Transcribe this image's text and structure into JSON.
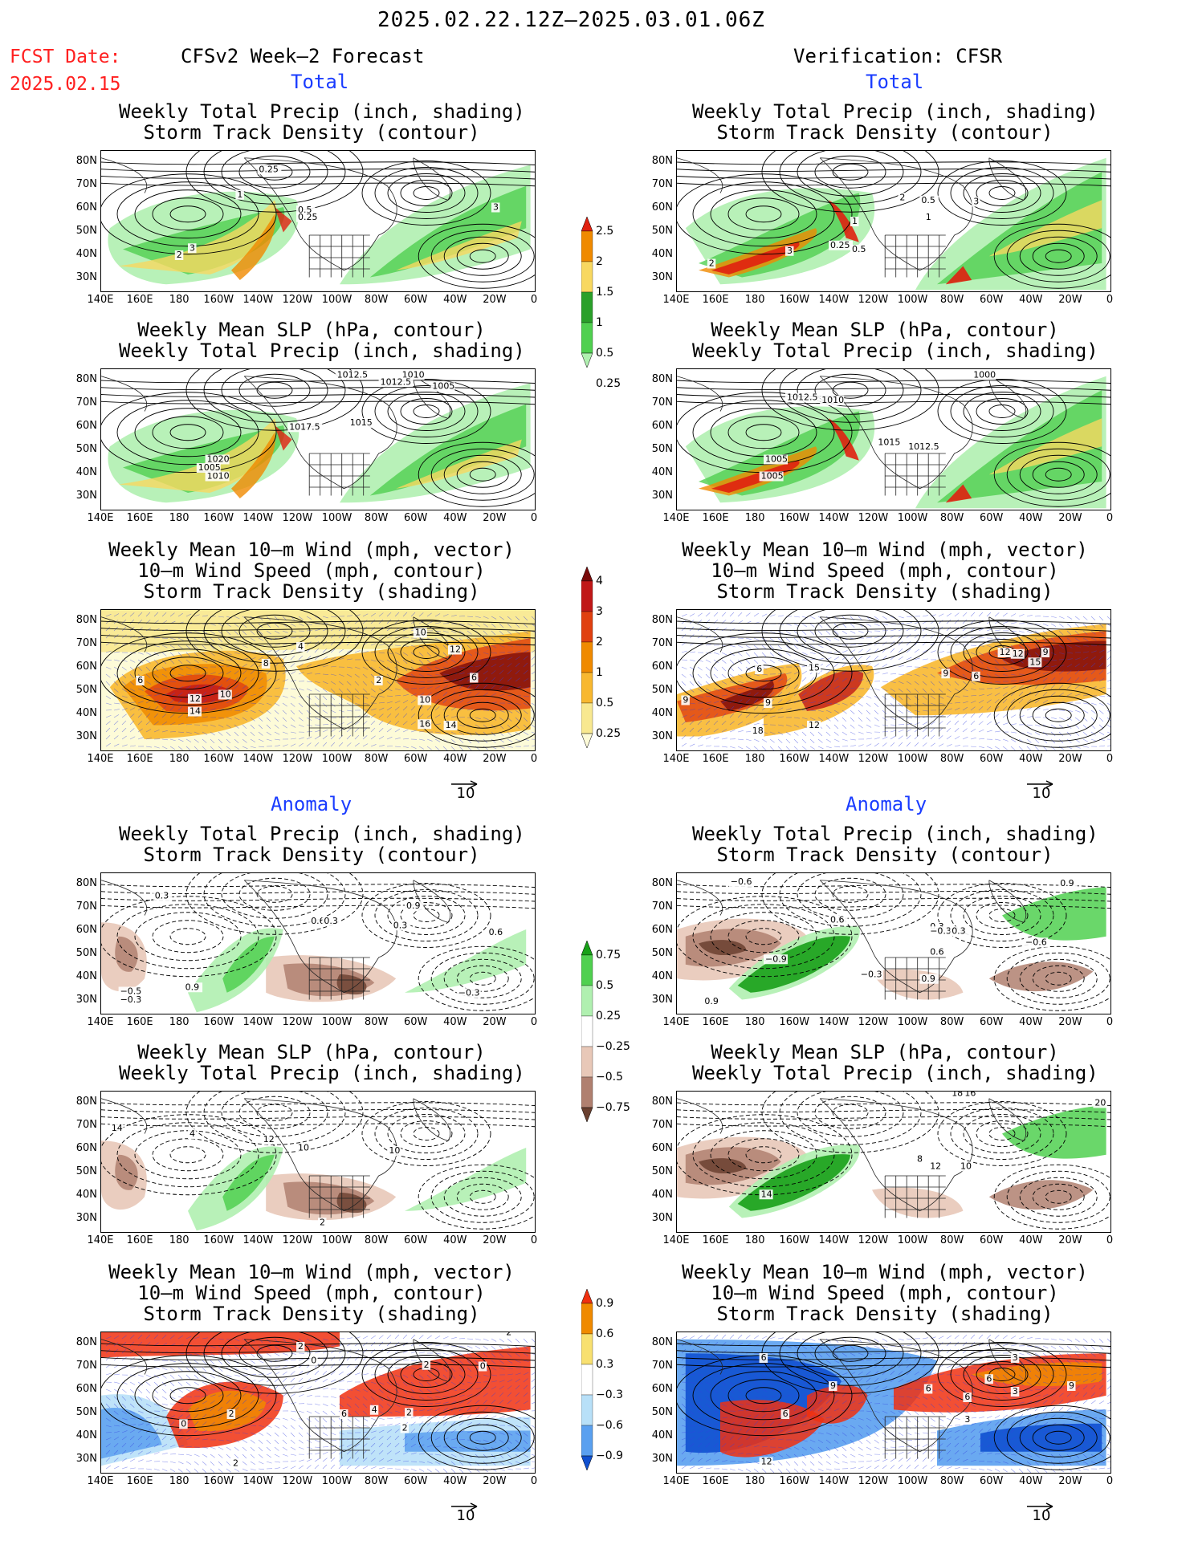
{
  "header": {
    "period": "2025.02.22.12Z—2025.03.01.06Z",
    "fcst_label": "FCST Date:",
    "fcst_date": "2025.02.15",
    "left_title": "CFSv2 Week—2 Forecast",
    "right_title": "Verification: CFSR",
    "section_total": "Total",
    "section_anomaly": "Anomaly"
  },
  "panel_titles": {
    "precip_storm": [
      "Weekly Total Precip (inch, shading)",
      "Storm Track Density (contour)"
    ],
    "slp_precip": [
      "Weekly Mean SLP (hPa, contour)",
      "Weekly Total Precip (inch, shading)"
    ],
    "wind": [
      "Weekly Mean 10—m Wind (mph, vector)",
      "10—m Wind Speed (mph, contour)",
      "Storm Track Density (shading)"
    ]
  },
  "axes": {
    "lat_ticks": [
      "80N",
      "70N",
      "60N",
      "50N",
      "40N",
      "30N"
    ],
    "lon_ticks": [
      "140E",
      "160E",
      "180",
      "160W",
      "140W",
      "120W",
      "100W",
      "80W",
      "60W",
      "40W",
      "20W",
      "0"
    ]
  },
  "vector_ref": "10",
  "colorbars": {
    "precip_total": {
      "labels": [
        "2.5",
        "2",
        "1.5",
        "1",
        "0.5",
        "0.25"
      ],
      "colors": [
        "#e02010",
        "#f08a00",
        "#f8d860",
        "#2aa02a",
        "#50d050",
        "#b0f0b0"
      ]
    },
    "storm_total": {
      "labels": [
        "4",
        "3",
        "2",
        "1",
        "0.5",
        "0.25"
      ],
      "colors": [
        "#7a0a0a",
        "#c01818",
        "#e04010",
        "#f08a00",
        "#f8b830",
        "#f8e890",
        "#fdfbd8"
      ]
    },
    "precip_anom": {
      "labels": [
        "0.75",
        "0.5",
        "0.25",
        "−0.25",
        "−0.5",
        "−0.75"
      ],
      "colors": [
        "#18a018",
        "#50d050",
        "#b0f0b0",
        "#ffffff",
        "#e8c8b8",
        "#b08070",
        "#6a4030"
      ]
    },
    "storm_anom": {
      "labels": [
        "0.9",
        "0.6",
        "0.3",
        "−0.3",
        "−0.6",
        "−0.9"
      ],
      "colors": [
        "#f03010",
        "#f08a00",
        "#f8e070",
        "#ffffff",
        "#b8e0f8",
        "#5aa0f0",
        "#1050d0"
      ]
    }
  },
  "contour_labels": {
    "p1": [
      "0.25",
      "1",
      "0.5",
      "0.25",
      "2",
      "3",
      "3"
    ],
    "p2": [
      "1",
      "2",
      "0.5",
      "3",
      "0.25",
      "0.5",
      "1",
      "3",
      "2"
    ],
    "p3": [
      "1012.5",
      "1010",
      "1005",
      "1012.5",
      "1017.5",
      "1015",
      "1020",
      "1010",
      "1005"
    ],
    "p4": [
      "1000",
      "1012.5",
      "1010",
      "1015",
      "1012.5",
      "1005",
      "1005"
    ],
    "p5": [
      "6",
      "12",
      "10",
      "14",
      "8",
      "4",
      "2",
      "10",
      "10",
      "12",
      "6",
      "16",
      "14"
    ],
    "p6": [
      "9",
      "15",
      "9",
      "12",
      "6",
      "9",
      "6",
      "15",
      "12",
      "9",
      "18",
      "12"
    ],
    "p7": [
      "0.3",
      "0.6",
      "0.3",
      "0.9",
      "0.3",
      "0.6",
      "0.9",
      "−0.5",
      "−0.3",
      "−0.3"
    ],
    "p8": [
      "−0.6",
      "0.6",
      "−0.9",
      "0.3",
      "−0.3",
      "0.3",
      "0.9",
      "0.6",
      "−0.6",
      "0.9",
      "−0.3",
      "0.9"
    ],
    "p9": [
      "14",
      "12",
      "10",
      "10",
      "2",
      "4"
    ],
    "p10": [
      "18",
      "16",
      "20",
      "8",
      "12",
      "10",
      "14"
    ],
    "p11": [
      "2",
      "2",
      "0",
      "2",
      "0",
      "2",
      "0",
      "4",
      "6",
      "2",
      "2",
      "2"
    ],
    "p12": [
      "6",
      "6",
      "9",
      "3",
      "6",
      "9",
      "6",
      "12",
      "3",
      "6",
      "3"
    ]
  }
}
